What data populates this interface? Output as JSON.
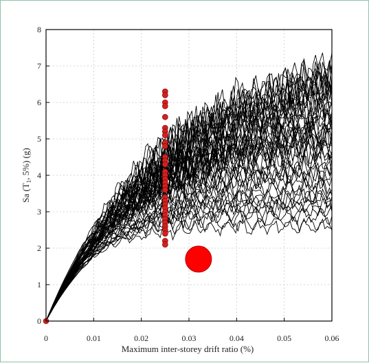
{
  "chart_data": {
    "type": "line",
    "title": "",
    "xlabel": "Maximum inter-storey drift ratio (%)",
    "ylabel_parts": [
      "Sa (T",
      "1",
      ", 5%) (g)"
    ],
    "xlim": [
      0,
      0.06
    ],
    "ylim": [
      0,
      8
    ],
    "xticks": [
      "0",
      "0.01",
      "0.02",
      "0.03",
      "0.04",
      "0.05",
      "0.06"
    ],
    "yticks": [
      "0",
      "1",
      "2",
      "3",
      "4",
      "5",
      "6",
      "7",
      "8"
    ],
    "grid": true,
    "curve_color": "#000000",
    "marker_color": "#d42020",
    "big_marker_color": "#ff0000",
    "ida_curves": {
      "count": 50,
      "collapse_sa_range": [
        2.6,
        7.8
      ],
      "initial_stiffness_slope_range": [
        240,
        330
      ],
      "end_drift": 0.06
    },
    "series": [
      {
        "type": "scatter",
        "x": [
          0.025,
          0.025,
          0.025,
          0.025,
          0.025,
          0.025,
          0.025,
          0.025,
          0.025,
          0.025,
          0.025,
          0.025,
          0.025,
          0.025,
          0.025,
          0.025,
          0.025,
          0.025,
          0.025,
          0.025,
          0.025,
          0.025,
          0.025,
          0.025,
          0.025,
          0.025,
          0.025,
          0.025,
          0.025,
          0.025,
          0.025,
          0.025
        ],
        "y": [
          6.3,
          6.2,
          6.0,
          5.9,
          5.6,
          5.3,
          5.2,
          5.1,
          4.9,
          4.8,
          4.5,
          4.4,
          4.3,
          4.1,
          4.0,
          3.9,
          3.8,
          3.7,
          3.6,
          3.4,
          3.3,
          3.2,
          3.1,
          3.0,
          2.9,
          2.8,
          2.7,
          2.6,
          2.5,
          2.4,
          2.2,
          2.1
        ]
      },
      {
        "type": "scatter",
        "x": [
          0
        ],
        "y": [
          0
        ]
      },
      {
        "type": "scatter-large",
        "x": [
          0.032
        ],
        "y": [
          1.7
        ]
      }
    ]
  }
}
